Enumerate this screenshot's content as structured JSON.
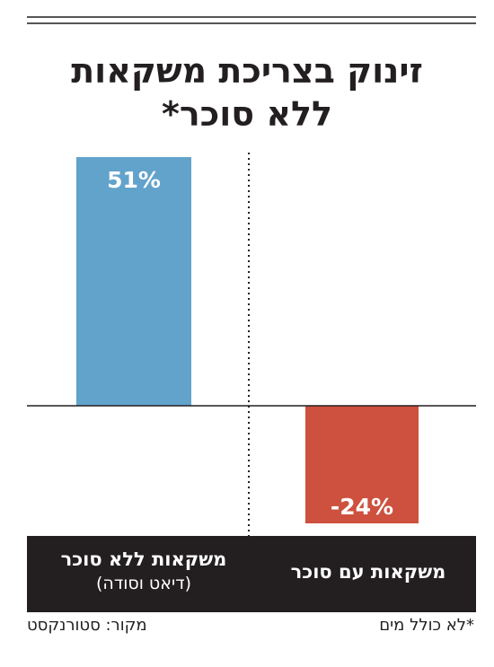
{
  "title": {
    "line1": "זינוק בצריכת משקאות",
    "line2": "ללא סוכר*"
  },
  "colors": {
    "positive": "#62a3cb",
    "negative": "#cd513e",
    "band": "#231f20"
  },
  "chart_data": {
    "type": "bar",
    "categories": [
      "משקאות ללא סוכר (דיאט וסודה)",
      "משקאות עם סוכר"
    ],
    "values": [
      51,
      -24
    ],
    "data_labels": [
      "51%",
      "-24%"
    ],
    "category_labels": [
      {
        "line1": "משקאות ללא סוכר",
        "line2": "(דיאט וסודה)"
      },
      {
        "line1": "משקאות עם סוכר",
        "line2": ""
      }
    ],
    "ylim": [
      -24,
      51
    ],
    "xlabel": "",
    "ylabel": ""
  },
  "footer": {
    "source": "מקור: סטורנקסט",
    "note": "*לא כולל מים"
  }
}
